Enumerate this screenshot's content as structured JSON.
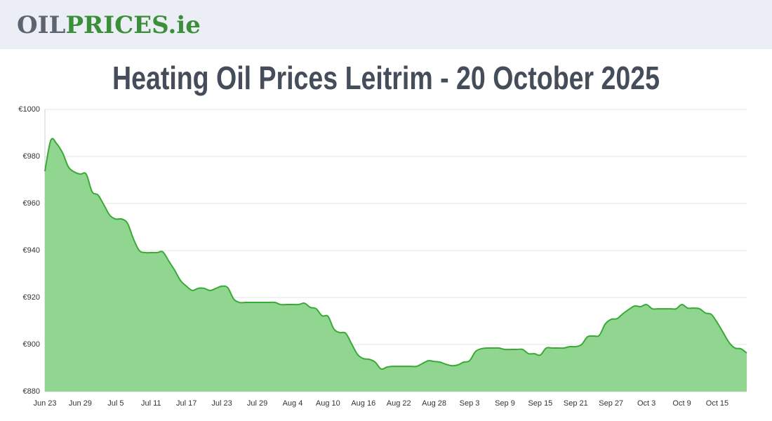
{
  "header": {
    "logo_part1": "OIL",
    "logo_part2": "PRICES.ie"
  },
  "chart_data": {
    "type": "area",
    "title": "Heating Oil Prices Leitrim - 20 October 2025",
    "color": "#3aaa35",
    "fill": "#90d690",
    "grid": true,
    "ylim": [
      880,
      1000
    ],
    "yticks": [
      {
        "value": 880,
        "label": "€880"
      },
      {
        "value": 900,
        "label": "€900"
      },
      {
        "value": 920,
        "label": "€920"
      },
      {
        "value": 940,
        "label": "€940"
      },
      {
        "value": 960,
        "label": "€960"
      },
      {
        "value": 980,
        "label": "€980"
      },
      {
        "value": 1000,
        "label": "€1000"
      }
    ],
    "categories": [
      "Jun 23",
      null,
      null,
      null,
      null,
      null,
      "Jun 29",
      null,
      null,
      null,
      null,
      null,
      "Jul 5",
      null,
      null,
      null,
      null,
      null,
      "Jul 11",
      null,
      null,
      null,
      null,
      null,
      "Jul 17",
      null,
      null,
      null,
      null,
      null,
      "Jul 23",
      null,
      null,
      null,
      null,
      null,
      "Jul 29",
      null,
      null,
      null,
      null,
      null,
      "Aug 4",
      null,
      null,
      null,
      null,
      null,
      "Aug 10",
      null,
      null,
      null,
      null,
      null,
      "Aug 16",
      null,
      null,
      null,
      null,
      null,
      "Aug 22",
      null,
      null,
      null,
      null,
      null,
      "Aug 28",
      null,
      null,
      null,
      null,
      null,
      "Sep 3",
      null,
      null,
      null,
      null,
      null,
      "Sep 9",
      null,
      null,
      null,
      null,
      null,
      "Sep 15",
      null,
      null,
      null,
      null,
      null,
      "Sep 21",
      null,
      null,
      null,
      null,
      null,
      "Sep 27",
      null,
      null,
      null,
      null,
      null,
      "Oct 3",
      null,
      null,
      null,
      null,
      null,
      "Oct 9",
      null,
      null,
      null,
      null,
      null,
      "Oct 15",
      null,
      null,
      null,
      null,
      null
    ],
    "values": [
      973.7,
      986.9,
      985.4,
      981.5,
      975.5,
      973.4,
      972.5,
      972.5,
      965.0,
      963.6,
      959.4,
      955.0,
      953.4,
      953.4,
      951.6,
      945.0,
      940.0,
      939.1,
      939.1,
      939.1,
      939.4,
      935.5,
      931.6,
      927.2,
      924.8,
      923.0,
      923.9,
      923.9,
      923.0,
      923.9,
      924.8,
      924.2,
      919.4,
      917.9,
      917.9,
      917.9,
      917.9,
      917.9,
      917.9,
      917.9,
      917.0,
      917.0,
      917.0,
      917.0,
      917.6,
      915.8,
      915.2,
      912.2,
      912.0,
      906.6,
      905.1,
      904.8,
      900.3,
      895.8,
      894.0,
      893.7,
      892.5,
      889.6,
      890.4,
      890.7,
      890.7,
      890.7,
      890.7,
      890.7,
      891.9,
      893.1,
      892.8,
      892.5,
      891.6,
      891.0,
      891.3,
      892.5,
      893.1,
      897.0,
      898.2,
      898.5,
      898.5,
      898.5,
      897.9,
      897.9,
      897.9,
      897.9,
      896.1,
      896.1,
      895.5,
      898.5,
      898.5,
      898.5,
      898.5,
      899.1,
      899.1,
      900.0,
      903.3,
      903.6,
      903.9,
      908.7,
      910.7,
      911.0,
      913.1,
      914.9,
      916.4,
      916.1,
      917.0,
      915.2,
      915.2,
      915.2,
      915.2,
      915.2,
      917.0,
      915.5,
      915.5,
      915.2,
      913.4,
      912.8,
      909.3,
      905.1,
      900.9,
      898.5,
      898.2,
      896.4
    ]
  }
}
